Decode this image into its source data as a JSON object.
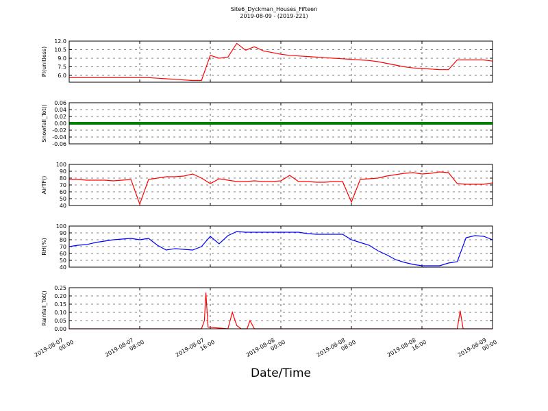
{
  "title": "Site6_Dyckman_Houses_Fifteen",
  "subtitle": "2019-08-09 - (2019-221)",
  "xlabel": "Date/Time",
  "xlim": [
    "2019-08-07 00:00",
    "2019-08-09 00:00"
  ],
  "xticks": [
    "2019-08-07 00:00",
    "2019-08-07 08:00",
    "2019-08-07 16:00",
    "2019-08-08 00:00",
    "2019-08-08 08:00",
    "2019-08-08 16:00",
    "2019-08-09 00:00"
  ],
  "x": [
    "2019-08-07 00:00",
    "2019-08-07 01:00",
    "2019-08-07 02:00",
    "2019-08-07 03:00",
    "2019-08-07 04:00",
    "2019-08-07 05:00",
    "2019-08-07 06:00",
    "2019-08-07 07:00",
    "2019-08-07 08:00",
    "2019-08-07 09:00",
    "2019-08-07 10:00",
    "2019-08-07 11:00",
    "2019-08-07 12:00",
    "2019-08-07 13:00",
    "2019-08-07 14:00",
    "2019-08-07 15:00",
    "2019-08-07 16:00",
    "2019-08-07 17:00",
    "2019-08-07 18:00",
    "2019-08-07 19:00",
    "2019-08-07 20:00",
    "2019-08-07 21:00",
    "2019-08-07 22:00",
    "2019-08-07 23:00",
    "2019-08-08 00:00",
    "2019-08-08 01:00",
    "2019-08-08 02:00",
    "2019-08-08 03:00",
    "2019-08-08 04:00",
    "2019-08-08 05:00",
    "2019-08-08 06:00",
    "2019-08-08 07:00",
    "2019-08-08 08:00",
    "2019-08-08 09:00",
    "2019-08-08 10:00",
    "2019-08-08 11:00",
    "2019-08-08 12:00",
    "2019-08-08 13:00",
    "2019-08-08 14:00",
    "2019-08-08 15:00",
    "2019-08-08 16:00",
    "2019-08-08 17:00",
    "2019-08-08 18:00",
    "2019-08-08 19:00",
    "2019-08-08 20:00",
    "2019-08-08 21:00",
    "2019-08-08 22:00",
    "2019-08-08 23:00",
    "2019-08-09 00:00"
  ],
  "chart_data": [
    {
      "type": "line",
      "ylabel": "PI(unitless)",
      "ylim": [
        4.8,
        12
      ],
      "grid": true,
      "yticks": [
        {
          "value": 6,
          "label": "6.0"
        },
        7.5,
        {
          "value": 9,
          "label": "9.0"
        },
        10.5,
        {
          "value": 12,
          "label": "12.0"
        }
      ],
      "series": [
        {
          "name": "PI",
          "color": "#ff0000",
          "values": [
            5.6,
            5.6,
            5.6,
            5.6,
            5.6,
            5.6,
            5.6,
            5.6,
            5.6,
            5.6,
            5.5,
            5.4,
            5.3,
            5.2,
            5.1,
            5.1,
            9.5,
            9.0,
            9.2,
            11.6,
            10.4,
            11.0,
            10.3,
            10.0,
            9.7,
            9.5,
            9.4,
            9.3,
            9.2,
            9.1,
            9.0,
            8.9,
            8.8,
            8.7,
            8.6,
            8.4,
            8.1,
            7.8,
            7.5,
            7.3,
            7.2,
            7.1,
            7.0,
            7.0,
            8.7,
            8.7,
            8.7,
            8.7,
            8.5
          ]
        }
      ]
    },
    {
      "type": "line",
      "ylabel": "Snowfall_Tot()",
      "ylim": [
        -0.06,
        0.06
      ],
      "grid": true,
      "yticks": [
        -0.06,
        -0.04,
        -0.02,
        {
          "value": 0,
          "label": "0.00"
        },
        0.02,
        0.04,
        0.06
      ],
      "series": [
        {
          "name": "Snowfall_Tot",
          "color": "#008000",
          "values": [
            0,
            0,
            0,
            0,
            0,
            0,
            0,
            0,
            0,
            0,
            0,
            0,
            0,
            0,
            0,
            0,
            0,
            0,
            0,
            0,
            0,
            0,
            0,
            0,
            0,
            0,
            0,
            0,
            0,
            0,
            0,
            0,
            0,
            0,
            0,
            0,
            0,
            0,
            0,
            0,
            0,
            0,
            0,
            0,
            0,
            0,
            0,
            0,
            0
          ]
        }
      ]
    },
    {
      "type": "line",
      "ylabel": "AirTF()",
      "ylim": [
        40,
        100
      ],
      "grid": true,
      "yticks": [
        40,
        50,
        60,
        70,
        80,
        90,
        100
      ],
      "series": [
        {
          "name": "AirTF",
          "color": "#ff0000",
          "values": [
            78,
            78,
            77,
            77,
            77,
            76,
            77,
            78,
            42,
            78,
            80,
            82,
            82,
            83,
            86,
            80,
            72,
            79,
            77,
            75,
            75,
            76,
            75,
            75,
            76,
            84,
            75,
            75,
            74,
            74,
            75,
            75,
            45,
            78,
            79,
            80,
            83,
            85,
            87,
            88,
            86,
            87,
            89,
            88,
            72,
            71,
            71,
            71,
            73
          ]
        }
      ]
    },
    {
      "type": "line",
      "ylabel": "RH(%)",
      "ylim": [
        40,
        100
      ],
      "grid": true,
      "yticks": [
        40,
        50,
        60,
        70,
        80,
        90,
        100
      ],
      "series": [
        {
          "name": "RH",
          "color": "#0000ff",
          "values": [
            70,
            72,
            73,
            76,
            78,
            80,
            81,
            82,
            80,
            82,
            72,
            65,
            67,
            66,
            65,
            70,
            85,
            74,
            86,
            92,
            91,
            91,
            91,
            91,
            91,
            91,
            91,
            89,
            88,
            88,
            88,
            88,
            80,
            76,
            72,
            64,
            58,
            51,
            47,
            44,
            42,
            42,
            42,
            46,
            48,
            83,
            86,
            85,
            80
          ]
        }
      ]
    },
    {
      "type": "line",
      "ylabel": "Rainfall_Tot()",
      "ylim": [
        0,
        0.25
      ],
      "grid": true,
      "yticks": [
        {
          "value": 0,
          "label": "0.00"
        },
        0.05,
        {
          "value": 0.1,
          "label": "0.10"
        },
        0.15,
        {
          "value": 0.2,
          "label": "0.20"
        },
        0.25
      ],
      "x": [
        "2019-08-07 00:00",
        "2019-08-07 15:00",
        "2019-08-07 15:20",
        "2019-08-07 15:30",
        "2019-08-07 15:45",
        "2019-08-07 18:00",
        "2019-08-07 18:30",
        "2019-08-07 19:00",
        "2019-08-07 19:30",
        "2019-08-07 20:10",
        "2019-08-07 20:30",
        "2019-08-07 21:00",
        "2019-08-08 20:00",
        "2019-08-08 20:20",
        "2019-08-08 20:40",
        "2019-08-09 00:00"
      ],
      "series": [
        {
          "name": "Rainfall_Tot",
          "color": "#ff0000",
          "values": [
            0,
            0,
            0.05,
            0.22,
            0.01,
            0,
            0.1,
            0.02,
            0,
            0,
            0.05,
            0,
            0,
            0.11,
            0,
            0
          ]
        }
      ]
    }
  ]
}
